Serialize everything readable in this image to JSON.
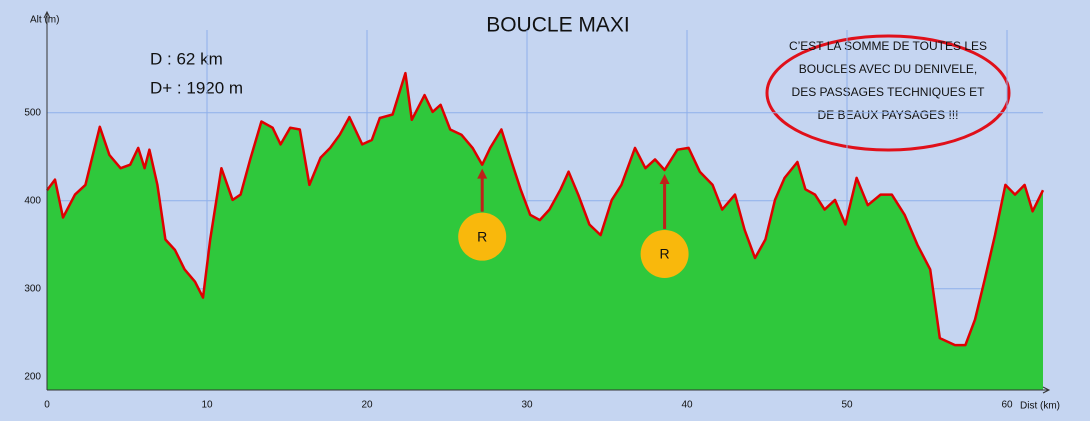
{
  "chart_data": {
    "type": "area",
    "title": "BOUCLE MAXI",
    "y_label": "Alt (m)",
    "x_label": "Dist (km)",
    "info": [
      "D : 62 km",
      "D+ : 1920 m"
    ],
    "callout": [
      "C’EST LA SOMME DE TOUTES LES",
      "BOUCLES AVEC DU DENIVELE,",
      "DES PASSAGES TECHNIQUES ET",
      "DE BEAUX PAYSAGES !!!"
    ],
    "annotations": [
      {
        "text": "R",
        "x": 27.2
      },
      {
        "text": "R",
        "x": 38.6
      }
    ],
    "line_color": "#e00000",
    "fill_color": "#2fc83c",
    "grid": true,
    "xlim": [
      0,
      62.25
    ],
    "ylim": [
      185,
      594
    ],
    "xticks": [
      0,
      10,
      20,
      30,
      40,
      50,
      60
    ],
    "yticks": [
      200,
      300,
      400,
      500
    ],
    "x": [
      0,
      0.5,
      1,
      1.75,
      2.4,
      3.3,
      3.9,
      4.6,
      5.2,
      5.7,
      6.1,
      6.4,
      6.9,
      7.4,
      8.0,
      8.6,
      9.25,
      9.75,
      10.2,
      10.9,
      11.6,
      12.1,
      12.7,
      13.4,
      14.1,
      14.6,
      15.2,
      15.8,
      16.4,
      17.1,
      17.7,
      18.3,
      18.9,
      19.7,
      20.3,
      20.8,
      21.6,
      22.4,
      22.8,
      23.6,
      24.1,
      24.6,
      25.2,
      25.9,
      26.6,
      27.2,
      27.7,
      28.4,
      28.9,
      29.6,
      30.2,
      30.8,
      31.4,
      32.1,
      32.6,
      33.2,
      33.9,
      34.6,
      35.3,
      35.9,
      36.75,
      37.4,
      38.0,
      38.6,
      39.4,
      40.1,
      40.8,
      41.6,
      42.2,
      43.0,
      43.6,
      44.25,
      44.9,
      45.5,
      46.1,
      46.9,
      47.4,
      48.0,
      48.6,
      49.25,
      49.9,
      50.6,
      51.3,
      52.1,
      52.8,
      53.6,
      54.4,
      55.2,
      55.8,
      56.75,
      57.4,
      58.0,
      58.6,
      59.25,
      59.9,
      60.5,
      61.1,
      61.6,
      62.25
    ],
    "values": [
      412,
      424,
      381,
      407,
      418,
      484,
      452,
      437,
      441,
      460,
      437,
      458,
      418,
      356,
      344,
      322,
      308,
      290,
      356,
      437,
      401,
      407,
      447,
      490,
      483,
      464,
      483,
      481,
      418,
      449,
      460,
      475,
      495,
      464,
      469,
      494,
      498,
      545,
      492,
      520,
      501,
      509,
      481,
      475,
      460,
      441,
      460,
      481,
      452,
      413,
      384,
      378,
      390,
      413,
      433,
      407,
      373,
      361,
      401,
      418,
      460,
      437,
      447,
      435,
      458,
      460,
      433,
      418,
      390,
      407,
      367,
      335,
      356,
      401,
      426,
      444,
      413,
      407,
      390,
      401,
      373,
      426,
      395,
      407,
      407,
      384,
      350,
      322,
      244,
      236,
      236,
      265,
      310,
      361,
      418,
      407,
      418,
      388,
      412
    ]
  }
}
